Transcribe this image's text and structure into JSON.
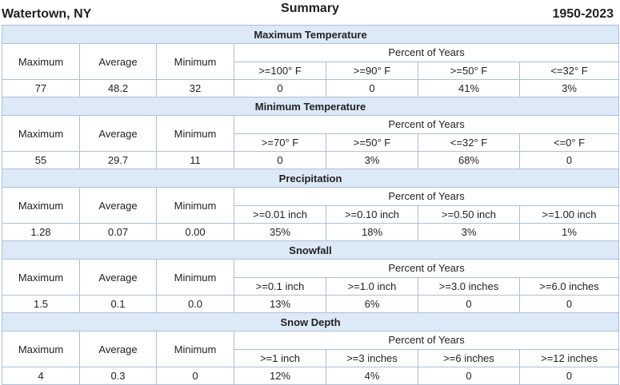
{
  "header": {
    "location": "Watertown, NY",
    "title": "Summary",
    "years": "1950-2023"
  },
  "labels": {
    "maximum": "Maximum",
    "average": "Average",
    "minimum": "Minimum",
    "percent_of_years": "Percent of Years"
  },
  "sections": [
    {
      "title": "Maximum Temperature",
      "thresholds": [
        ">=100° F",
        ">=90° F",
        ">=50° F",
        "<=32° F"
      ],
      "max": "77",
      "avg": "48.2",
      "min": "32",
      "percents": [
        "0",
        "0",
        "41%",
        "3%"
      ]
    },
    {
      "title": "Minimum Temperature",
      "thresholds": [
        ">=70° F",
        ">=50° F",
        "<=32° F",
        "<=0° F"
      ],
      "max": "55",
      "avg": "29.7",
      "min": "11",
      "percents": [
        "0",
        "3%",
        "68%",
        "0"
      ]
    },
    {
      "title": "Precipitation",
      "thresholds": [
        ">=0.01 inch",
        ">=0.10 inch",
        ">=0.50 inch",
        ">=1.00 inch"
      ],
      "max": "1.28",
      "avg": "0.07",
      "min": "0.00",
      "percents": [
        "35%",
        "18%",
        "3%",
        "1%"
      ]
    },
    {
      "title": "Snowfall",
      "thresholds": [
        ">=0.1 inch",
        ">=1.0 inch",
        ">=3.0 inches",
        ">=6.0 inches"
      ],
      "max": "1.5",
      "avg": "0.1",
      "min": "0.0",
      "percents": [
        "13%",
        "6%",
        "0",
        "0"
      ]
    },
    {
      "title": "Snow Depth",
      "thresholds": [
        ">=1 inch",
        ">=3 inches",
        ">=6 inches",
        ">=12 inches"
      ],
      "max": "4",
      "avg": "0.3",
      "min": "0",
      "percents": [
        "12%",
        "4%",
        "0",
        "0"
      ]
    }
  ]
}
